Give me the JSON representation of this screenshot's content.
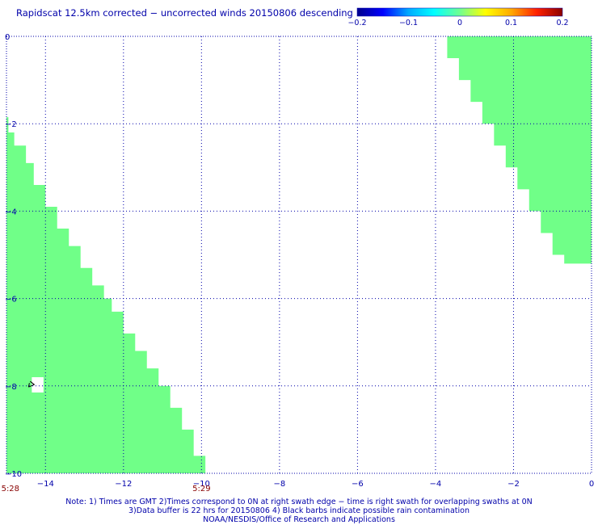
{
  "title": "Rapidscat 12.5km corrected − uncorrected winds 20150806 descending",
  "colorbar": {
    "ticks": [
      "−0.2",
      "−0.1",
      "0",
      "0.1",
      "0.2"
    ],
    "tick_values": [
      -0.2,
      -0.1,
      0,
      0.1,
      0.2
    ],
    "stops": [
      "#00008c",
      "#0000ff",
      "#00aaff",
      "#00ffff",
      "#70ff90",
      "#ffff00",
      "#ffaa00",
      "#ff2000",
      "#8c0000"
    ]
  },
  "colors": {
    "text": "#0000aa",
    "grid": "#0000aa",
    "fill": "#70ff88",
    "time_label": "#880000",
    "barb": "#000000"
  },
  "time_labels": [
    {
      "text": "5:28",
      "lon": -14.9
    },
    {
      "text": "5:29",
      "lon": -10.0
    }
  ],
  "notes": [
    "Note: 1) Times are GMT 2)Times correspond to 0N at right swath edge − time is right swath for overlapping swaths at 0N",
    "3)Data buffer is 22 hrs for 20150806 4) Black barbs indicate possible rain contamination",
    "NOAA/NESDIS/Office of Research and Applications"
  ],
  "chart_data": {
    "type": "heatmap",
    "title": "Rapidscat 12.5km corrected − uncorrected winds 20150806 descending",
    "xlim": [
      -15,
      0
    ],
    "ylim": [
      -10,
      0
    ],
    "x_ticks": [
      -14,
      -12,
      -10,
      -8,
      -6,
      -4,
      -2,
      0
    ],
    "y_ticks": [
      0,
      -2,
      -4,
      -6,
      -8,
      -10
    ],
    "grid": true,
    "value_in_swaths": 0,
    "swaths": [
      {
        "name": "left",
        "edge_type": "right",
        "edge": [
          [
            -14.95,
            -1.85
          ],
          [
            -14.8,
            -2.2
          ],
          [
            -14.5,
            -2.5
          ],
          [
            -14.3,
            -2.9
          ],
          [
            -14.0,
            -3.4
          ],
          [
            -13.7,
            -3.9
          ],
          [
            -13.4,
            -4.4
          ],
          [
            -13.1,
            -4.8
          ],
          [
            -12.8,
            -5.3
          ],
          [
            -12.5,
            -5.7
          ],
          [
            -12.3,
            -6.0
          ],
          [
            -12.0,
            -6.3
          ],
          [
            -11.7,
            -6.8
          ],
          [
            -11.4,
            -7.2
          ],
          [
            -11.1,
            -7.6
          ],
          [
            -10.8,
            -8.0
          ],
          [
            -10.5,
            -8.5
          ],
          [
            -10.2,
            -9.0
          ],
          [
            -9.9,
            -9.6
          ],
          [
            -9.6,
            -10.0
          ]
        ]
      },
      {
        "name": "right",
        "edge_type": "left",
        "edge": [
          [
            -3.7,
            0.0
          ],
          [
            -3.4,
            -0.5
          ],
          [
            -3.1,
            -1.0
          ],
          [
            -2.8,
            -1.5
          ],
          [
            -2.5,
            -2.0
          ],
          [
            -2.2,
            -2.5
          ],
          [
            -1.9,
            -3.0
          ],
          [
            -1.6,
            -3.5
          ],
          [
            -1.3,
            -4.0
          ],
          [
            -1.0,
            -4.5
          ],
          [
            -0.7,
            -5.0
          ],
          [
            -0.4,
            -5.2
          ],
          [
            0.0,
            -5.2
          ]
        ]
      }
    ],
    "holes": [
      {
        "lon": [
          -14.35,
          -14.05
        ],
        "lat": [
          -8.15,
          -7.8
        ]
      }
    ],
    "rain_barbs": [
      {
        "lon": -14.35,
        "lat": -7.97
      }
    ]
  }
}
